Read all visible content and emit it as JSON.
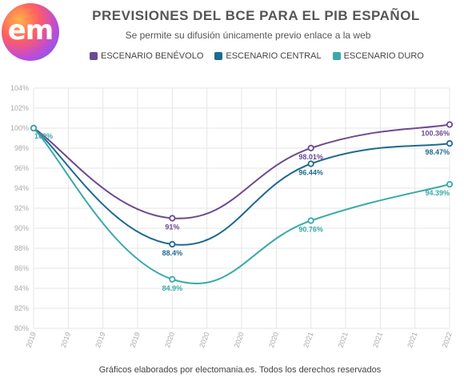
{
  "logo_text": "em",
  "chart_data": {
    "type": "line",
    "title": "PREVISIONES DEL BCE PARA EL PIB ESPAÑOL",
    "subtitle": "Se permite su difusión únicamente previo enlace a la web",
    "x_tick_labels": [
      "2019",
      "2019",
      "2019",
      "2019",
      "2020",
      "2020",
      "2020",
      "2020",
      "2021",
      "2021",
      "2021",
      "2021",
      "2022"
    ],
    "x_values": [
      2019,
      2020,
      2021,
      2022
    ],
    "ylim": [
      80,
      104
    ],
    "y_ticks": [
      "80%",
      "82%",
      "84%",
      "86%",
      "88%",
      "90%",
      "92%",
      "94%",
      "96%",
      "98%",
      "100%",
      "102%",
      "104%"
    ],
    "y_tick_values": [
      80,
      82,
      84,
      86,
      88,
      90,
      92,
      94,
      96,
      98,
      100,
      102,
      104
    ],
    "legend_position": "top",
    "grid": true,
    "series": [
      {
        "name": "ESCENARIO BENÉVOLO",
        "color": "#6b4a91",
        "values": [
          100,
          91,
          98.01,
          100.36
        ],
        "labels": [
          "",
          "91%",
          "98.01%",
          "100.36%"
        ]
      },
      {
        "name": "ESCENARIO CENTRAL",
        "color": "#1f6a8f",
        "values": [
          100,
          88.4,
          96.44,
          98.47
        ],
        "labels": [
          "",
          "88.4%",
          "96.44%",
          "98.47%"
        ]
      },
      {
        "name": "ESCENARIO DURO",
        "color": "#3aa9a9",
        "values": [
          100,
          84.9,
          90.76,
          94.39
        ],
        "labels": [
          "100%",
          "84.9%",
          "90.76%",
          "94.39%"
        ]
      }
    ]
  },
  "footer": "Gráficos elaborados por electomania.es. Todos los derechos reservados"
}
